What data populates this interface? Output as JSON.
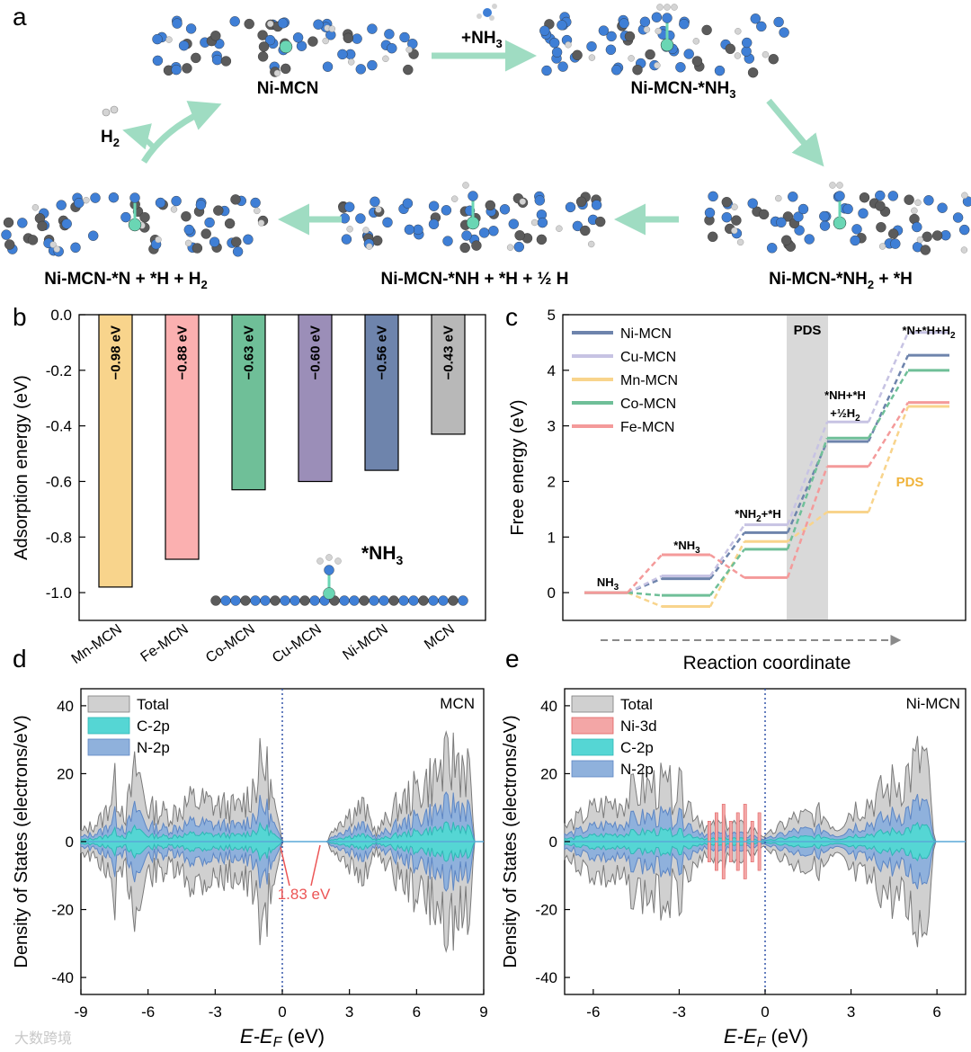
{
  "panel_labels": {
    "a": "a",
    "b": "b",
    "c": "c",
    "d": "d",
    "e": "e"
  },
  "panel_a": {
    "structures": [
      {
        "main": "Ni-MCN",
        "sub": "",
        "tail": ""
      },
      {
        "main": "Ni-MCN-*NH",
        "sub": "3",
        "tail": ""
      },
      {
        "main": "Ni-MCN-*NH",
        "sub": "2",
        "tail": " + *H"
      },
      {
        "main": "Ni-MCN-*NH + *H + ½ H",
        "sub": "",
        "tail": ""
      },
      {
        "main": "Ni-MCN-*N + *H + H",
        "sub": "2",
        "tail": ""
      }
    ],
    "step_label_main": "+NH",
    "step_label_sub": "3",
    "release_main": "H",
    "release_sub": "2",
    "colors": {
      "carbon": "#5b5b5b",
      "nitrogen": "#3f7fd6",
      "hydrogen": "#d4d4d4",
      "nickel": "#6ad6b4",
      "arrow": "#9fdcc2"
    }
  },
  "chart_data": [
    {
      "panel": "b",
      "type": "bar",
      "categories": [
        "Mn-MCN",
        "Fe-MCN",
        "Co-MCN",
        "Cu-MCN",
        "Ni-MCN",
        "MCN"
      ],
      "values": [
        -0.98,
        -0.88,
        -0.63,
        -0.6,
        -0.56,
        -0.43
      ],
      "value_labels": [
        "−0.98 eV",
        "−0.88 eV",
        "−0.63 eV",
        "−0.60 eV",
        "−0.56 eV",
        "−0.43 eV"
      ],
      "colors": [
        "#f8d48c",
        "#fbb0b0",
        "#6fbf98",
        "#9b8eb8",
        "#6e84ac",
        "#b8b8b8"
      ],
      "ylabel": "Adsorption energy (eV)",
      "ylim": [
        -1.1,
        0.0
      ],
      "yticks": [
        0.0,
        -0.2,
        -0.4,
        -0.6,
        -0.8,
        -1.0
      ],
      "ytick_labels": [
        "0.0",
        "-0.2",
        "-0.4",
        "-0.6",
        "-0.8",
        "-1.0"
      ],
      "inset_label_main": "*NH",
      "inset_label_sub": "3"
    },
    {
      "panel": "c",
      "type": "line",
      "ylabel": "Free energy (eV)",
      "xlabel": "Reaction coordinate",
      "ylim": [
        -0.5,
        5.0
      ],
      "yticks": [
        0,
        1,
        2,
        3,
        4,
        5
      ],
      "states": [
        "NH3",
        "*NH3",
        "*NH2+*H",
        "*NH+*H+½H2",
        "*N+*H+H2"
      ],
      "series": [
        {
          "name": "Ni-MCN",
          "color": "#6e84ac",
          "values": [
            0,
            0.25,
            1.08,
            2.72,
            4.27
          ]
        },
        {
          "name": "Cu-MCN",
          "color": "#c7c3e3",
          "values": [
            0,
            0.3,
            1.22,
            3.07,
            4.68
          ]
        },
        {
          "name": "Mn-MCN",
          "color": "#f8d48c",
          "values": [
            0,
            -0.25,
            0.92,
            1.45,
            3.35
          ]
        },
        {
          "name": "Co-MCN",
          "color": "#6fbf98",
          "values": [
            0,
            -0.05,
            0.78,
            2.78,
            4.0
          ]
        },
        {
          "name": "Fe-MCN",
          "color": "#f49a9a",
          "values": [
            0,
            0.68,
            0.27,
            2.27,
            3.42
          ]
        }
      ],
      "legend_position": "top-left",
      "pds_label": "PDS",
      "pds_label_2": "PDS",
      "pds_label_2_color": "#f0b43c",
      "annotations": [
        {
          "main": "NH",
          "sub": "3",
          "tail": ""
        },
        {
          "main": "*NH",
          "sub": "3",
          "tail": ""
        },
        {
          "main": "*NH",
          "sub": "2",
          "tail": "+*H"
        },
        {
          "main": "*NH+*H",
          "sub": "",
          "tail": ""
        },
        {
          "main": "+½H",
          "sub": "2",
          "tail": ""
        },
        {
          "main": "*N+*H+H",
          "sub": "2",
          "tail": ""
        }
      ]
    },
    {
      "panel": "d",
      "type": "area",
      "title": "MCN",
      "ylabel": "Density of States (electrons/eV)",
      "xlabel_main": "E",
      "xlabel_mid": "-E",
      "xlabel_sub": "F",
      "xlabel_unit": " (eV)",
      "xlim": [
        -9,
        9
      ],
      "ylim": [
        -45,
        45
      ],
      "xticks": [
        -9,
        -6,
        -3,
        0,
        3,
        6,
        9
      ],
      "yticks": [
        -40,
        -20,
        0,
        20,
        40
      ],
      "series": [
        {
          "name": "Total",
          "color": "#d0d0d0",
          "envelope": [
            [
              -9,
              4
            ],
            [
              -8,
              10
            ],
            [
              -7.5,
              24
            ],
            [
              -7,
              12
            ],
            [
              -6.5,
              32
            ],
            [
              -6,
              14
            ],
            [
              -5,
              12
            ],
            [
              -4,
              18
            ],
            [
              -3,
              16
            ],
            [
              -2,
              14
            ],
            [
              -1.5,
              20
            ],
            [
              -0.8,
              35
            ],
            [
              -0.2,
              8
            ],
            [
              0,
              0
            ],
            [
              2,
              0
            ],
            [
              2.4,
              8
            ],
            [
              3,
              12
            ],
            [
              3.6,
              15
            ],
            [
              4.2,
              4
            ],
            [
              5,
              14
            ],
            [
              6,
              22
            ],
            [
              7,
              30
            ],
            [
              7.8,
              36
            ],
            [
              8.3,
              33
            ],
            [
              8.6,
              2
            ]
          ]
        },
        {
          "name": "C-2p",
          "color": "#55d6d4"
        },
        {
          "name": "N-2p",
          "color": "#8fb1dc"
        }
      ],
      "gap_label": "1.83 eV",
      "gap_color": "#ec5555"
    },
    {
      "panel": "e",
      "type": "area",
      "title": "Ni-MCN",
      "ylabel": "Density of States (electrons/eV)",
      "xlabel_main": "E",
      "xlabel_mid": "-E",
      "xlabel_sub": "F",
      "xlabel_unit": " (eV)",
      "xlim": [
        -7,
        7
      ],
      "ylim": [
        -45,
        45
      ],
      "xticks": [
        -6,
        -3,
        0,
        3,
        6
      ],
      "yticks": [
        -40,
        -20,
        0,
        20,
        40
      ],
      "series": [
        {
          "name": "Total",
          "color": "#d0d0d0",
          "envelope": [
            [
              -7,
              6
            ],
            [
              -6,
              14
            ],
            [
              -5,
              18
            ],
            [
              -4,
              24
            ],
            [
              -3,
              22
            ],
            [
              -2.5,
              14
            ],
            [
              -2,
              6
            ],
            [
              -1.2,
              8
            ],
            [
              -0.2,
              4
            ],
            [
              0,
              2
            ],
            [
              0.5,
              6
            ],
            [
              1,
              10
            ],
            [
              2,
              12
            ],
            [
              2.5,
              6
            ],
            [
              3,
              14
            ],
            [
              4,
              20
            ],
            [
              5,
              30
            ],
            [
              5.6,
              38
            ],
            [
              5.9,
              2
            ]
          ]
        },
        {
          "name": "Ni-3d",
          "color": "#f3a6a6"
        },
        {
          "name": "C-2p",
          "color": "#55d6d4"
        },
        {
          "name": "N-2p",
          "color": "#8fb1dc"
        }
      ]
    }
  ],
  "watermark": "大数跨境"
}
